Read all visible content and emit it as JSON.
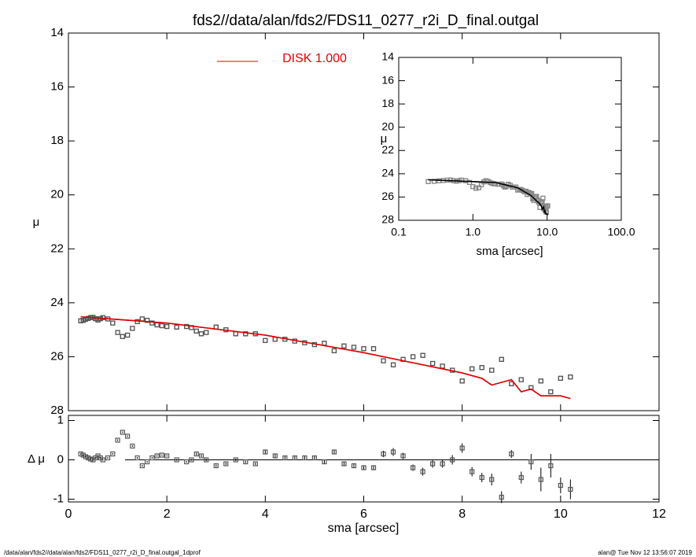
{
  "chart_data": [
    {
      "type": "scatter",
      "title": "fds2//data/alan/fds2/FDS11_0277_r2i_D_final.outgal",
      "ylabel": "μ",
      "xlim": [
        0,
        12
      ],
      "xticks": [
        0,
        2,
        4,
        6,
        8,
        10,
        12
      ],
      "ylim": [
        28,
        14
      ],
      "yticks": [
        14,
        16,
        18,
        20,
        22,
        24,
        26,
        28
      ],
      "x": [
        0.25,
        0.3,
        0.35,
        0.4,
        0.45,
        0.5,
        0.55,
        0.6,
        0.65,
        0.7,
        0.8,
        0.9,
        1.0,
        1.1,
        1.2,
        1.3,
        1.4,
        1.5,
        1.6,
        1.7,
        1.8,
        1.9,
        2.0,
        2.2,
        2.4,
        2.5,
        2.6,
        2.7,
        2.8,
        3.0,
        3.2,
        3.4,
        3.6,
        3.8,
        4.0,
        4.2,
        4.4,
        4.6,
        4.8,
        5.0,
        5.2,
        5.4,
        5.6,
        5.8,
        6.0,
        6.2,
        6.4,
        6.6,
        6.8,
        7.0,
        7.2,
        7.4,
        7.6,
        7.8,
        8.0,
        8.2,
        8.4,
        8.6,
        8.8,
        9.0,
        9.2,
        9.4,
        9.6,
        9.8,
        10.0,
        10.2
      ],
      "values": [
        24.67,
        24.65,
        24.61,
        24.58,
        24.55,
        24.54,
        24.59,
        24.64,
        24.59,
        24.55,
        24.6,
        24.75,
        25.1,
        25.25,
        25.2,
        24.95,
        24.7,
        24.6,
        24.65,
        24.75,
        24.82,
        24.85,
        24.88,
        24.9,
        24.88,
        24.92,
        25.05,
        25.15,
        25.1,
        24.9,
        25.0,
        25.15,
        25.15,
        25.15,
        25.4,
        25.35,
        25.35,
        25.42,
        25.48,
        25.55,
        25.5,
        25.78,
        25.6,
        25.65,
        25.7,
        25.7,
        26.15,
        26.3,
        26.1,
        26.0,
        25.95,
        26.25,
        26.35,
        26.5,
        26.9,
        26.45,
        26.4,
        26.5,
        26.1,
        27.0,
        26.85,
        27.15,
        26.9,
        27.3,
        26.8,
        26.75
      ],
      "color": "#555555",
      "model": {
        "name": "DISK  1.000",
        "color": "#e00000",
        "x": [
          0.25,
          2,
          4,
          6,
          8,
          8.4,
          8.6,
          9,
          9.2,
          9.4,
          9.6,
          10,
          10.2
        ],
        "values": [
          24.52,
          24.75,
          25.2,
          25.85,
          26.6,
          26.8,
          27.05,
          26.85,
          27.3,
          27.2,
          27.45,
          27.45,
          27.55
        ]
      }
    },
    {
      "type": "scatter",
      "xlabel": "sma [arcsec]",
      "ylabel": "μ",
      "log_x": true,
      "xlim": [
        0.1,
        100
      ],
      "xticks": [
        {
          "value": 0.1,
          "label": "0.1"
        },
        {
          "value": 1,
          "label": "1.0"
        },
        {
          "value": 10,
          "label": "10.0"
        },
        {
          "value": 100,
          "label": "100.0"
        }
      ],
      "ylim": [
        28,
        14
      ],
      "yticks": [
        14,
        16,
        18,
        20,
        22,
        24,
        26,
        28
      ],
      "color": "#888888",
      "line_color": "#000000"
    },
    {
      "type": "errorbar",
      "xlabel": "sma [arcsec]",
      "ylabel": "Δ μ",
      "xlim": [
        0,
        12
      ],
      "xticks": [
        0,
        2,
        4,
        6,
        8,
        10,
        12
      ],
      "ylim": [
        -1.07,
        1.13
      ],
      "yticks": [
        -1,
        0,
        1
      ],
      "values": [
        0.15,
        0.12,
        0.08,
        0.05,
        0.02,
        0.0,
        0.05,
        0.1,
        0.05,
        0.0,
        0.05,
        0.15,
        0.5,
        0.7,
        0.6,
        0.35,
        0.05,
        -0.15,
        -0.05,
        0.05,
        0.1,
        0.12,
        0.1,
        0.0,
        -0.05,
        0.0,
        0.15,
        0.1,
        0.0,
        -0.15,
        -0.1,
        0.0,
        -0.05,
        -0.1,
        0.2,
        0.1,
        0.05,
        0.05,
        0.05,
        0.05,
        -0.05,
        0.2,
        -0.1,
        -0.15,
        -0.2,
        -0.2,
        0.15,
        0.2,
        0.1,
        -0.2,
        -0.3,
        -0.1,
        -0.1,
        0.0,
        0.3,
        -0.3,
        -0.45,
        -0.5,
        -0.95,
        0.15,
        -0.45,
        -0.05,
        -0.5,
        -0.15,
        -0.65,
        -0.75
      ],
      "errors": [
        0.02,
        0.02,
        0.02,
        0.02,
        0.02,
        0.02,
        0.02,
        0.02,
        0.02,
        0.02,
        0.02,
        0.02,
        0.02,
        0.02,
        0.02,
        0.02,
        0.02,
        0.02,
        0.02,
        0.02,
        0.02,
        0.02,
        0.02,
        0.02,
        0.02,
        0.02,
        0.03,
        0.03,
        0.03,
        0.03,
        0.03,
        0.03,
        0.03,
        0.03,
        0.04,
        0.04,
        0.04,
        0.04,
        0.04,
        0.05,
        0.05,
        0.05,
        0.05,
        0.05,
        0.06,
        0.06,
        0.08,
        0.1,
        0.08,
        0.08,
        0.1,
        0.1,
        0.1,
        0.12,
        0.12,
        0.12,
        0.12,
        0.15,
        0.15,
        0.1,
        0.15,
        0.2,
        0.3,
        0.3,
        0.2,
        0.25
      ],
      "color": "#555555"
    },
    {
      "type": "footer",
      "left": "/data/alan/fds2//data/alan/fds2/FDS11_0277_r2i_D_final.outgal_1dprof",
      "right": "alan@  Tue Nov 12 13:56:07 2019"
    }
  ]
}
